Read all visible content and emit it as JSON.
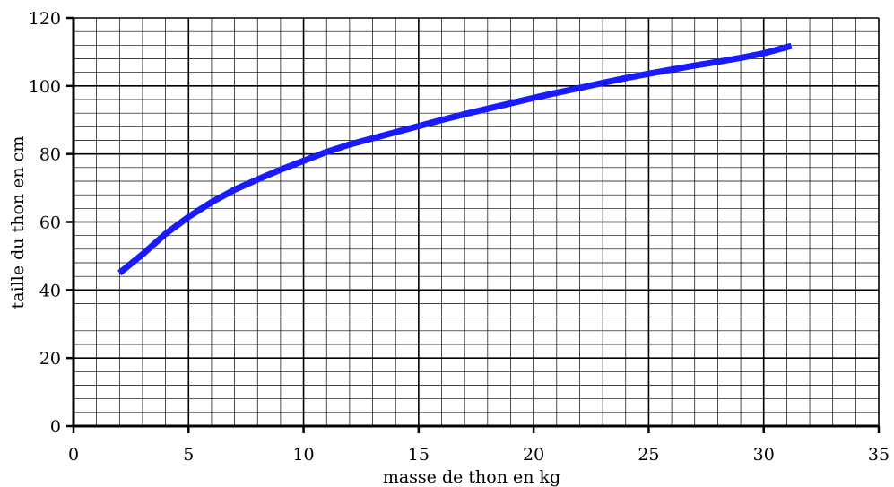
{
  "chart_data": {
    "type": "line",
    "title": "",
    "xlabel": "masse de thon en kg",
    "ylabel": "taille du thon en cm",
    "xlim": [
      0,
      35
    ],
    "ylim": [
      0,
      120
    ],
    "x_ticks": [
      0,
      5,
      10,
      15,
      20,
      25,
      30,
      35
    ],
    "y_ticks": [
      0,
      20,
      40,
      60,
      80,
      100,
      120
    ],
    "x_tick_labels": [
      "0",
      "5",
      "10",
      "15",
      "20",
      "25",
      "30",
      "35"
    ],
    "y_tick_labels": [
      "0",
      "20",
      "40",
      "60",
      "80",
      "100",
      "120"
    ],
    "grid": true,
    "minor_grid_step_x": 1,
    "minor_grid_step_y": 4,
    "series": [
      {
        "color": "#1a1aff",
        "x": [
          2,
          3,
          4,
          5,
          6,
          7,
          8,
          9,
          10,
          11,
          12,
          13,
          14,
          15,
          16,
          17,
          18,
          19,
          20,
          21,
          22,
          23,
          24,
          25,
          26,
          27,
          28,
          29,
          30,
          31.2
        ],
        "values": [
          45,
          50.5,
          56.5,
          61.5,
          65.8,
          69.5,
          72.5,
          75.4,
          78,
          80.6,
          82.8,
          84.6,
          86.4,
          88.2,
          90,
          91.7,
          93.3,
          94.9,
          96.5,
          98,
          99.4,
          100.9,
          102.3,
          103.6,
          104.8,
          106,
          107.1,
          108.3,
          109.6,
          111.8
        ]
      }
    ]
  }
}
